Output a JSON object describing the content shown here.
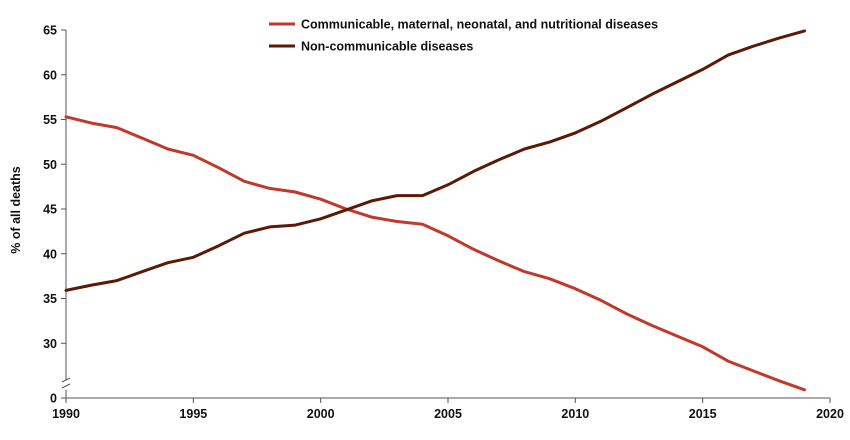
{
  "chart_data": {
    "type": "line",
    "title": "",
    "xlabel": "",
    "ylabel": "% of all deaths",
    "xlim": [
      1990,
      2020
    ],
    "ylim": [
      25,
      65
    ],
    "y_axis_break": true,
    "y_axis_break_label": "0",
    "x_ticks": [
      1990,
      1995,
      2000,
      2005,
      2010,
      2015,
      2020
    ],
    "y_ticks": [
      30,
      35,
      40,
      45,
      50,
      55,
      60,
      65
    ],
    "grid": false,
    "legend_position": "top-center",
    "x": [
      1990,
      1991,
      1992,
      1993,
      1994,
      1995,
      1996,
      1997,
      1998,
      1999,
      2000,
      2001,
      2002,
      2003,
      2004,
      2005,
      2006,
      2007,
      2008,
      2009,
      2010,
      2011,
      2012,
      2013,
      2014,
      2015,
      2016,
      2017,
      2018,
      2019
    ],
    "series": [
      {
        "name": "Communicable, maternal, neonatal, and nutritional diseases",
        "color": "#c0392b",
        "values": [
          55.3,
          54.6,
          54.1,
          52.9,
          51.7,
          51.0,
          49.6,
          48.1,
          47.3,
          46.9,
          46.1,
          45.0,
          44.1,
          43.6,
          43.3,
          42.0,
          40.5,
          39.2,
          38.0,
          37.2,
          36.1,
          34.8,
          33.3,
          32.0,
          30.8,
          29.6,
          28.0,
          26.9,
          25.8,
          24.8
        ]
      },
      {
        "name": "Non-communicable diseases",
        "color": "#5b1a06",
        "values": [
          35.9,
          36.5,
          37.0,
          38.0,
          39.0,
          39.6,
          40.9,
          42.3,
          43.0,
          43.2,
          43.9,
          44.9,
          45.9,
          46.5,
          46.5,
          47.7,
          49.2,
          50.5,
          51.7,
          52.5,
          53.5,
          54.8,
          56.3,
          57.8,
          59.2,
          60.6,
          62.2,
          63.2,
          64.1,
          64.9
        ]
      }
    ]
  }
}
